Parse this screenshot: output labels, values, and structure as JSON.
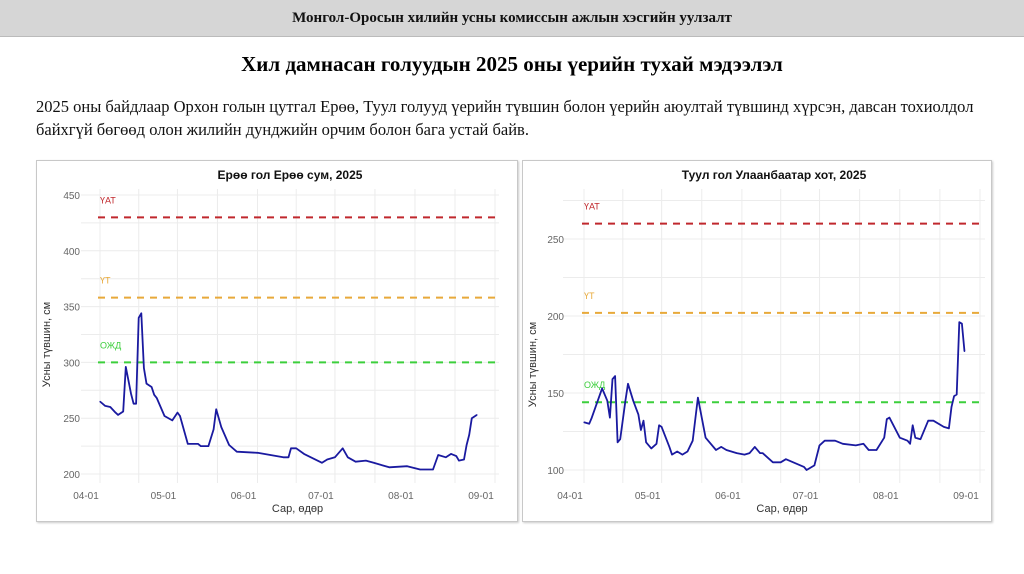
{
  "header": {
    "title": "Монгол-Оросын хилийн усны комиссын ажлын хэсгийн уулзалт"
  },
  "slide": {
    "heading": "Хил дамнасан голуудын 2025 оны үерийн тухай мэдээлэл",
    "paragraph": "2025 оны байдлаар Орхон голын цутгал Ерөө, Туул голууд үерийн түвшин болон үерийн аюултай түвшинд хүрсэн, давсан тохиолдол байхгүй бөгөөд олон жилийн дунджийн орчим болон бага устай байв."
  },
  "colors": {
    "line": "#1a1aa0",
    "uat": "#c0282d",
    "ut": "#e8a93a",
    "ozhd": "#3ccf3c"
  },
  "chart_data": [
    {
      "type": "line",
      "title": "Ерөө гол Ерөө сум, 2025",
      "xlabel": "Сар, өдөр",
      "ylabel": "Усны түвшин, см",
      "xticks": [
        "04-01",
        "05-01",
        "06-01",
        "07-01",
        "08-01",
        "09-01"
      ],
      "yticks": [
        200,
        250,
        300,
        350,
        400,
        450
      ],
      "ylim": [
        200,
        450
      ],
      "grid": true,
      "thresholds": [
        {
          "label": "ҮАТ",
          "value": 430,
          "color": "#c0282d"
        },
        {
          "label": "ҮТ",
          "value": 358,
          "color": "#e8a93a"
        },
        {
          "label": "ОЖД",
          "value": 300,
          "color": "#3ccf3c"
        }
      ],
      "x": [
        "04-01",
        "04-03",
        "04-05",
        "04-07",
        "04-08",
        "04-10",
        "04-11",
        "04-13",
        "04-14",
        "04-15",
        "04-16",
        "04-17",
        "04-18",
        "04-19",
        "04-21",
        "04-22",
        "04-23",
        "04-26",
        "04-29",
        "05-01",
        "05-02",
        "05-05",
        "05-09",
        "05-10",
        "05-13",
        "05-15",
        "05-16",
        "05-18",
        "05-21",
        "05-24",
        "06-01",
        "06-06",
        "06-11",
        "06-13",
        "06-14",
        "06-16",
        "06-19",
        "06-26",
        "06-28",
        "07-01",
        "07-04",
        "07-06",
        "07-09",
        "07-13",
        "07-16",
        "07-22",
        "07-29",
        "08-03",
        "08-08",
        "08-10",
        "08-13",
        "08-15",
        "08-17",
        "08-18",
        "08-20",
        "08-21",
        "08-22",
        "08-23",
        "08-25"
      ],
      "y": [
        265,
        261,
        260,
        255,
        253,
        256,
        296,
        272,
        263,
        263,
        340,
        344,
        295,
        281,
        278,
        271,
        268,
        252,
        248,
        255,
        252,
        227,
        227,
        225,
        225,
        240,
        258,
        242,
        226,
        220,
        219,
        217,
        215,
        215,
        223,
        223,
        218,
        210,
        213,
        215,
        223,
        215,
        211,
        212,
        210,
        206,
        207,
        204,
        204,
        217,
        215,
        218,
        216,
        212,
        213,
        226,
        235,
        250,
        253
      ]
    },
    {
      "type": "line",
      "title": "Туул гол Улаанбаатар хот, 2025",
      "xlabel": "Сар, өдөр",
      "ylabel": "Усны түвшин, см",
      "xticks": [
        "04-01",
        "05-01",
        "06-01",
        "07-01",
        "08-01",
        "09-01"
      ],
      "yticks": [
        100,
        150,
        200,
        250
      ],
      "ylim": [
        100,
        250
      ],
      "grid": true,
      "thresholds": [
        {
          "label": "ҮАТ",
          "value": 260,
          "color": "#c0282d"
        },
        {
          "label": "ҮТ",
          "value": 202,
          "color": "#e8a93a"
        },
        {
          "label": "ОЖД",
          "value": 144,
          "color": "#3ccf3c"
        }
      ],
      "x": [
        "04-01",
        "04-03",
        "04-04",
        "04-08",
        "04-10",
        "04-11",
        "04-12",
        "04-13",
        "04-14",
        "04-15",
        "04-17",
        "04-18",
        "04-20",
        "04-22",
        "04-23",
        "04-24",
        "04-25",
        "04-27",
        "04-29",
        "04-30",
        "05-01",
        "05-04",
        "05-05",
        "05-07",
        "05-09",
        "05-11",
        "05-13",
        "05-15",
        "05-18",
        "05-22",
        "05-24",
        "05-26",
        "05-30",
        "06-02",
        "06-04",
        "06-06",
        "06-08",
        "06-09",
        "06-13",
        "06-16",
        "06-18",
        "06-25",
        "06-26",
        "06-29",
        "07-01",
        "07-03",
        "07-07",
        "07-10",
        "07-15",
        "07-18",
        "07-20",
        "07-23",
        "07-26",
        "07-27",
        "07-28",
        "08-01",
        "08-04",
        "08-05",
        "08-06",
        "08-07",
        "08-09",
        "08-12",
        "08-14",
        "08-18",
        "08-20",
        "08-21",
        "08-22",
        "08-23",
        "08-24",
        "08-25",
        "08-26"
      ],
      "y": [
        131,
        130,
        134,
        153,
        145,
        134,
        159,
        161,
        118,
        120,
        145,
        156,
        145,
        136,
        126,
        132,
        118,
        114,
        117,
        129,
        128,
        115,
        110,
        112,
        110,
        112,
        119,
        147,
        121,
        113,
        115,
        113,
        111,
        110,
        111,
        115,
        111,
        111,
        105,
        105,
        107,
        102,
        100,
        103,
        116,
        119,
        119,
        117,
        116,
        117,
        113,
        113,
        121,
        133,
        134,
        121,
        119,
        117,
        129,
        121,
        120,
        132,
        132,
        128,
        127,
        141,
        148,
        149,
        196,
        195,
        177
      ]
    }
  ]
}
